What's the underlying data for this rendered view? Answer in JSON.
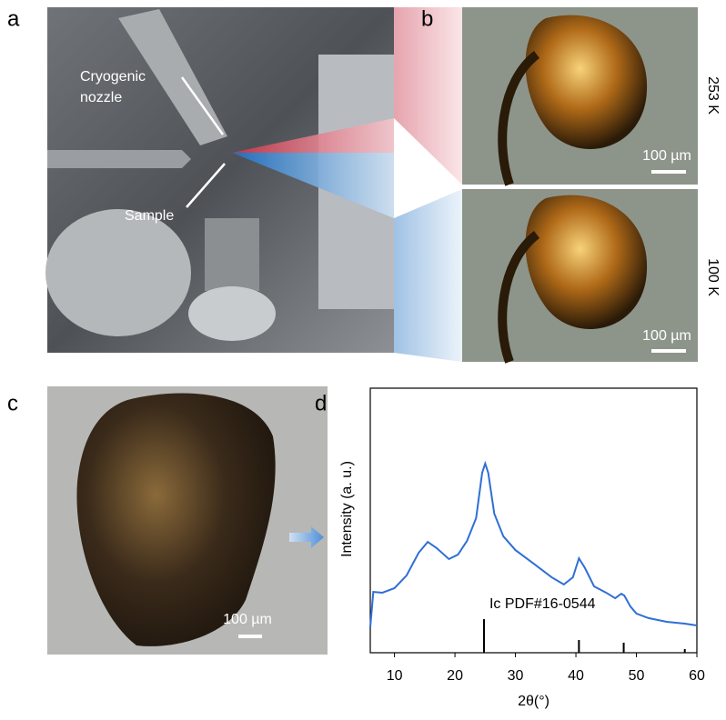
{
  "panels": {
    "a": {
      "label": "a",
      "nozzle_line1": "Cryogenic",
      "nozzle_line2": "nozzle",
      "sample": "Sample"
    },
    "b": {
      "label": "b",
      "top_temp": "253 K",
      "bottom_temp": "100 K",
      "top_scale": "100 µm",
      "bottom_scale": "100 µm"
    },
    "c": {
      "label": "c",
      "scale": "100 µm"
    },
    "d": {
      "label": "d"
    }
  },
  "chart_data": {
    "type": "line",
    "xlabel": "2θ(°)",
    "ylabel": "Intensity (a. u.)",
    "xlim": [
      6,
      60
    ],
    "xticks": [
      10,
      20,
      30,
      40,
      50,
      60
    ],
    "ylim": [
      0,
      100
    ],
    "series": [
      {
        "color": "#2f6fd6",
        "x": [
          6,
          6.5,
          8,
          10,
          12,
          14,
          15.5,
          17,
          19,
          20.5,
          22,
          23.5,
          24.5,
          25,
          25.5,
          26.5,
          28,
          30,
          33,
          36,
          38,
          39.5,
          40.5,
          41.5,
          43,
          45,
          46.5,
          47.5,
          48,
          49,
          50,
          52,
          55,
          58,
          60
        ],
        "values": [
          9.6,
          23.0,
          22.7,
          24.4,
          29.2,
          37.8,
          41.9,
          39.5,
          35.4,
          37.1,
          42.3,
          50.9,
          68.0,
          71.5,
          68.0,
          52.6,
          44.0,
          38.8,
          33.7,
          28.5,
          25.8,
          28.5,
          35.7,
          32.0,
          25.1,
          22.7,
          20.6,
          22.3,
          21.6,
          17.5,
          14.8,
          13.1,
          11.7,
          11.0,
          10.3
        ]
      },
      {
        "name": "Ic PDF#16-0544",
        "color": "#000000",
        "x": [
          24.8,
          40.5,
          47.9,
          58.0
        ],
        "values": [
          12.7,
          4.8,
          3.8,
          1.4
        ]
      }
    ]
  }
}
